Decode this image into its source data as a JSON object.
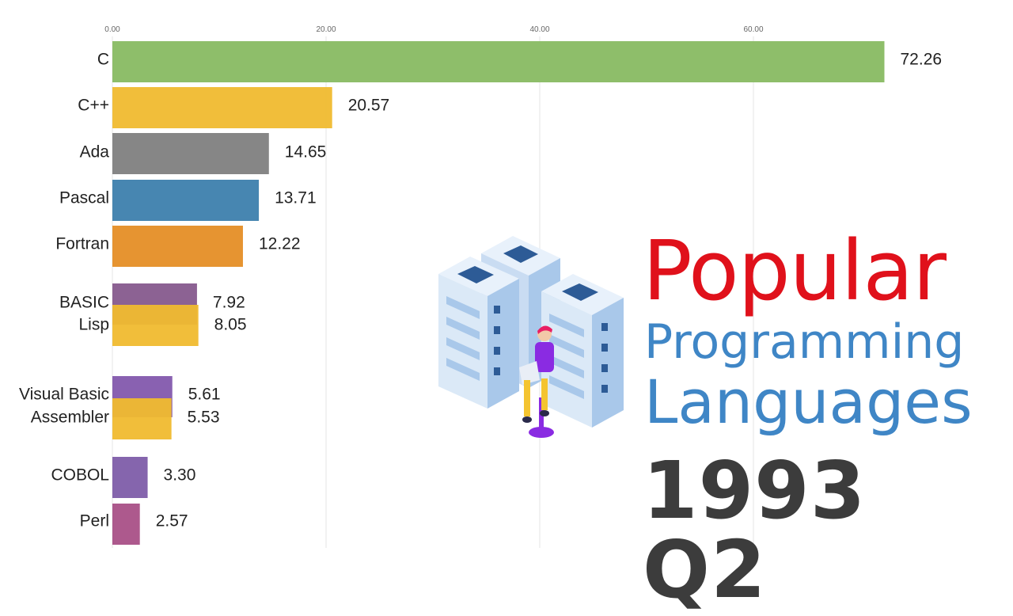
{
  "chart_data": {
    "type": "bar",
    "orientation": "horizontal",
    "categories": [
      "C",
      "C++",
      "Ada",
      "Pascal",
      "Fortran",
      "BASIC",
      "Lisp",
      "Visual Basic",
      "Assembler",
      "COBOL",
      "Perl"
    ],
    "values": [
      72.26,
      20.57,
      14.65,
      13.71,
      12.22,
      7.92,
      8.05,
      5.61,
      5.53,
      3.3,
      2.57
    ],
    "value_labels": [
      "72.26",
      "20.57",
      "14.65",
      "13.71",
      "12.22",
      "7.92",
      "8.05",
      "5.61",
      "5.53",
      "3.30",
      "2.57"
    ],
    "colors": [
      "#88bb62",
      "#f0ba2f",
      "#7f7f7f",
      "#3d80ad",
      "#e58e26",
      "#865a8d",
      "#f0ba2f",
      "#8358ad",
      "#f0ba2f",
      "#7e5da9",
      "#a95087"
    ],
    "xticks": [
      0,
      20,
      40,
      60
    ],
    "xtick_labels": [
      "0.00",
      "20.00",
      "40.00",
      "60.00"
    ],
    "xlim": [
      0,
      78
    ],
    "grid": true,
    "xlabel": "",
    "ylabel": ""
  },
  "overlay": {
    "line1": "Popular",
    "line2": "Programming",
    "line3": "Languages",
    "period": "1993 Q2"
  },
  "illustration": {
    "icon": "server-racks-with-person-icon",
    "colors": {
      "server_light": "#dbe9f7",
      "server_mid": "#a9c8ea",
      "server_dark": "#2d5b96",
      "person_shirt": "#8a2be2",
      "person_hair": "#e91e63",
      "person_pants": "#f4c430"
    }
  }
}
